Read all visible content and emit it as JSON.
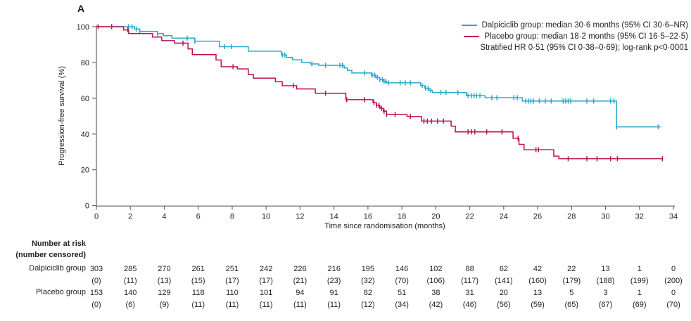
{
  "chart_data": {
    "type": "line",
    "subtype": "kaplan-meier-step",
    "panel_label": "A",
    "xlabel": "Time since randomisation (months)",
    "ylabel": "Progression-free survival (%)",
    "xlim": [
      0,
      34
    ],
    "ylim": [
      0,
      100
    ],
    "xticks": [
      0,
      2,
      4,
      6,
      8,
      10,
      12,
      14,
      16,
      18,
      20,
      22,
      24,
      26,
      28,
      30,
      32,
      34
    ],
    "yticks": [
      0,
      20,
      40,
      60,
      80,
      100
    ],
    "grid": false,
    "legend": {
      "position": "top-right",
      "entries": [
        {
          "label": "Dalpiciclib group: median 30·6 months (95% CI 30·6–NR)",
          "color": "#2BA7C9"
        },
        {
          "label": "Placebo group: median 18·2 months (95% CI 16·5–22·5)",
          "color": "#C00D50"
        }
      ],
      "note": "Stratified HR 0·51 (95% CI 0·38–0·69); log-rank p<0·0001"
    },
    "series": [
      {
        "name": "Dalpiciclib group",
        "color": "#2BA7C9",
        "median_months": "30·6",
        "ci_95": "30·6–NR",
        "steps": [
          [
            0,
            100
          ],
          [
            2.25,
            98.7
          ],
          [
            2.55,
            97.4
          ],
          [
            3.6,
            96.1
          ],
          [
            3.95,
            95.0
          ],
          [
            4.45,
            93.6
          ],
          [
            5.8,
            91.9
          ],
          [
            7.25,
            88.8
          ],
          [
            8.95,
            86.3
          ],
          [
            10.9,
            84.2
          ],
          [
            11.2,
            82.8
          ],
          [
            11.55,
            81.5
          ],
          [
            12.1,
            80.0
          ],
          [
            12.6,
            79.2
          ],
          [
            13.1,
            78.4
          ],
          [
            14.6,
            76.9
          ],
          [
            14.8,
            75.5
          ],
          [
            15.05,
            74.1
          ],
          [
            16.2,
            72.9
          ],
          [
            16.45,
            71.7
          ],
          [
            16.7,
            70.5
          ],
          [
            16.9,
            69.5
          ],
          [
            17.1,
            68.6
          ],
          [
            19.1,
            67.0
          ],
          [
            19.35,
            65.6
          ],
          [
            19.6,
            64.4
          ],
          [
            19.8,
            63.2
          ],
          [
            21.8,
            61.4
          ],
          [
            22.9,
            60.3
          ],
          [
            25.1,
            58.4
          ],
          [
            30.65,
            44.0
          ]
        ],
        "end_time": 33.25,
        "censor_times": [
          1.9,
          2.1,
          2.35,
          2.55,
          3.6,
          5.35,
          5.8,
          7.55,
          7.95,
          10.95,
          11.1,
          12.7,
          13.5,
          14.35,
          14.5,
          15.8,
          16.25,
          16.4,
          16.55,
          16.7,
          16.85,
          16.95,
          17.05,
          17.2,
          17.9,
          18.2,
          18.5,
          19.2,
          19.4,
          19.55,
          19.7,
          20.3,
          20.6,
          21.3,
          21.9,
          22.1,
          22.25,
          22.4,
          22.6,
          23.3,
          23.6,
          24.6,
          24.8,
          25.3,
          25.45,
          25.6,
          25.75,
          26.1,
          26.45,
          26.8,
          27.5,
          27.65,
          27.8,
          27.95,
          28.9,
          29.3,
          30.3,
          30.5,
          30.65,
          33.1
        ]
      },
      {
        "name": "Placebo group",
        "color": "#C00D50",
        "median_months": "18·2",
        "ci_95": "16·5–22·5",
        "steps": [
          [
            0,
            100
          ],
          [
            1.6,
            98.2
          ],
          [
            1.9,
            96.2
          ],
          [
            3.3,
            94.2
          ],
          [
            3.85,
            92.2
          ],
          [
            4.6,
            90.8
          ],
          [
            5.4,
            87.6
          ],
          [
            5.65,
            84.4
          ],
          [
            7.05,
            81.4
          ],
          [
            7.35,
            77.6
          ],
          [
            8.3,
            76.4
          ],
          [
            8.95,
            73.2
          ],
          [
            9.25,
            71.2
          ],
          [
            10.55,
            69.2
          ],
          [
            10.95,
            67.0
          ],
          [
            11.8,
            65.2
          ],
          [
            12.9,
            62.8
          ],
          [
            14.7,
            59.2
          ],
          [
            16.3,
            57.6
          ],
          [
            16.5,
            56.0
          ],
          [
            16.7,
            54.4
          ],
          [
            16.9,
            52.8
          ],
          [
            17.1,
            51.0
          ],
          [
            18.3,
            49.8
          ],
          [
            19.15,
            47.2
          ],
          [
            20.9,
            44.4
          ],
          [
            21.15,
            41.2
          ],
          [
            24.55,
            37.6
          ],
          [
            24.9,
            34.2
          ],
          [
            25.2,
            31.2
          ],
          [
            26.95,
            27.6
          ],
          [
            27.25,
            26.2
          ]
        ],
        "end_time": 33.4,
        "censor_times": [
          0.1,
          0.9,
          1.85,
          5.1,
          8.05,
          11.6,
          13.5,
          14.75,
          15.8,
          16.35,
          16.5,
          16.65,
          16.8,
          16.95,
          17.1,
          17.6,
          18.5,
          19.3,
          19.5,
          19.75,
          20.1,
          20.45,
          21.9,
          22.1,
          22.3,
          23.0,
          23.9,
          24.85,
          25.9,
          26.05,
          27.8,
          28.9,
          29.5,
          30.3,
          30.7,
          33.35
        ]
      }
    ],
    "risk_table": {
      "header": "Number at risk",
      "subheader": "(number censored)",
      "months": [
        0,
        2,
        4,
        6,
        8,
        10,
        12,
        14,
        16,
        18,
        20,
        22,
        24,
        26,
        28,
        30,
        32,
        34
      ],
      "rows": [
        {
          "label": "Dalpiciclib group",
          "at_risk": [
            303,
            285,
            270,
            261,
            251,
            242,
            226,
            216,
            195,
            146,
            102,
            88,
            62,
            42,
            22,
            13,
            1,
            0
          ],
          "censored": [
            0,
            11,
            13,
            15,
            17,
            17,
            21,
            23,
            32,
            70,
            106,
            117,
            141,
            160,
            179,
            188,
            199,
            200
          ]
        },
        {
          "label": "Placebo group",
          "at_risk": [
            153,
            140,
            129,
            118,
            110,
            101,
            94,
            91,
            82,
            51,
            38,
            31,
            20,
            13,
            5,
            3,
            1,
            0
          ],
          "censored": [
            0,
            6,
            9,
            11,
            11,
            11,
            11,
            11,
            12,
            34,
            42,
            46,
            56,
            59,
            65,
            67,
            69,
            70
          ]
        }
      ]
    }
  }
}
